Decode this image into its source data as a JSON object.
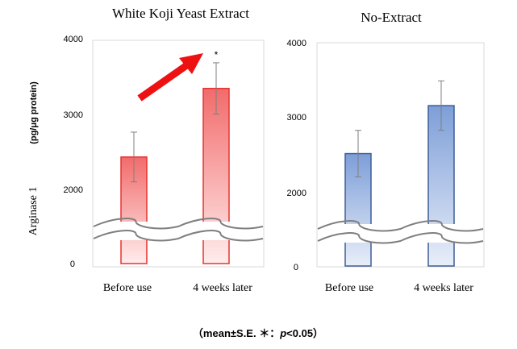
{
  "ylabel_main": "Arginase 1",
  "ylabel_unit": "(pg/μg  protein)",
  "footnote": {
    "prefix": "（mean±S.E.    ＊：",
    "p": "p",
    "suffix": "<0.05）"
  },
  "chart_data": [
    {
      "type": "bar",
      "title": "White  Koji  Yeast Extract",
      "categories": [
        "Before use",
        "4 weeks later"
      ],
      "values": [
        2430,
        3340
      ],
      "errors": [
        330,
        340
      ],
      "ylim": [
        0,
        4000
      ],
      "yticks": [
        "0",
        "2000",
        "3000",
        "4000"
      ],
      "axis_break": true,
      "significance": [
        "",
        "*"
      ],
      "trend_arrow": true,
      "bar_color": "#f26b6b",
      "bar_border": "#e8322f",
      "arrow_color": "#ee1111",
      "grid": false
    },
    {
      "type": "bar",
      "title": "No-Extract",
      "categories": [
        "Before use",
        "4 weeks later"
      ],
      "values": [
        2510,
        3150
      ],
      "errors": [
        310,
        330
      ],
      "ylim": [
        0,
        4000
      ],
      "yticks": [
        "0",
        "2000",
        "3000",
        "4000"
      ],
      "axis_break": true,
      "significance": [
        "",
        ""
      ],
      "trend_arrow": false,
      "bar_color": "#7d9ed8",
      "bar_border": "#3f5e96",
      "grid": false
    }
  ]
}
